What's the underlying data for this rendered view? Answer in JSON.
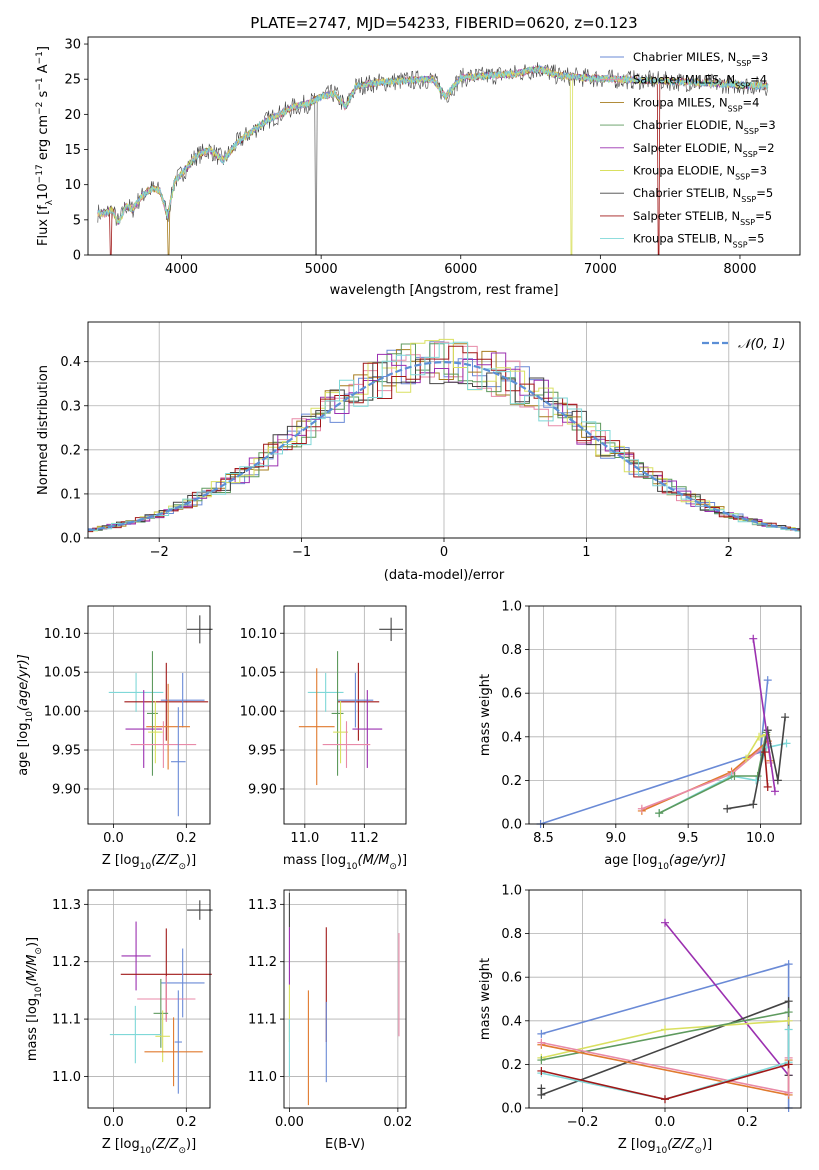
{
  "figure_title": "PLATE=2747, MJD=54233, FIBERID=0620, z=0.123",
  "legend_series": [
    {
      "name": "Chabrier MILES, N",
      "sub": "SSP",
      "val": "=3",
      "color": "#6a8ad6"
    },
    {
      "name": "Salpeter MILES, N",
      "sub": "SSP",
      "val": "=4",
      "color": "#e88aa8"
    },
    {
      "name": "Kroupa MILES, N",
      "sub": "SSP",
      "val": "=4",
      "color": "#a67c1e"
    },
    {
      "name": "Chabrier ELODIE, N",
      "sub": "SSP",
      "val": "=3",
      "color": "#5e9a5e"
    },
    {
      "name": "Salpeter ELODIE, N",
      "sub": "SSP",
      "val": "=2",
      "color": "#9b30b0"
    },
    {
      "name": "Kroupa ELODIE, N",
      "sub": "SSP",
      "val": "=3",
      "color": "#d9e060"
    },
    {
      "name": "Chabrier STELIB, N",
      "sub": "SSP",
      "val": "=5",
      "color": "#444444"
    },
    {
      "name": "Salpeter STELIB, N",
      "sub": "SSP",
      "val": "=5",
      "color": "#a01818"
    },
    {
      "name": "Kroupa STELIB, N",
      "sub": "SSP",
      "val": "=5",
      "color": "#7fd8d8"
    }
  ],
  "chart_data": [
    {
      "type": "line",
      "ylabel_main": "Flux [f",
      "ylabel_sub": "λ",
      "ylabel_rest": "10",
      "ylabel_exp1": "−17",
      "ylabel_unit": " erg cm",
      "ylabel_exp2": "−2",
      "ylabel_s": " s",
      "ylabel_exp3": "−1",
      "ylabel_end": " A",
      "ylabel_exp4": "−1",
      "ylabel_close": "]",
      "xlabel": "wavelength [Angstrom, rest frame]",
      "xlim": [
        3330,
        8430
      ],
      "ylim": [
        0,
        31
      ],
      "xticks": [
        4000,
        5000,
        6000,
        7000,
        8000
      ],
      "yticks": [
        0,
        5,
        10,
        15,
        20,
        25,
        30
      ],
      "spectrum": [
        [
          3400,
          6.0
        ],
        [
          3450,
          5.8
        ],
        [
          3500,
          6.5
        ],
        [
          3550,
          4.5
        ],
        [
          3600,
          7.0
        ],
        [
          3650,
          6.5
        ],
        [
          3700,
          8.0
        ],
        [
          3750,
          9.0
        ],
        [
          3800,
          9.5
        ],
        [
          3850,
          9.0
        ],
        [
          3900,
          5.5
        ],
        [
          3950,
          10.5
        ],
        [
          4000,
          11.5
        ],
        [
          4100,
          14.0
        ],
        [
          4200,
          15.0
        ],
        [
          4300,
          13.5
        ],
        [
          4400,
          16.0
        ],
        [
          4500,
          17.5
        ],
        [
          4600,
          19.0
        ],
        [
          4700,
          20.0
        ],
        [
          4800,
          21.0
        ],
        [
          4900,
          21.5
        ],
        [
          5000,
          22.5
        ],
        [
          5100,
          23.0
        ],
        [
          5175,
          21.0
        ],
        [
          5250,
          24.0
        ],
        [
          5400,
          24.5
        ],
        [
          5600,
          24.8
        ],
        [
          5800,
          25.0
        ],
        [
          5890,
          22.5
        ],
        [
          6000,
          25.2
        ],
        [
          6200,
          25.5
        ],
        [
          6400,
          25.8
        ],
        [
          6563,
          26.5
        ],
        [
          6700,
          25.5
        ],
        [
          6900,
          25.2
        ],
        [
          7100,
          25.0
        ],
        [
          7400,
          24.8
        ],
        [
          7700,
          24.5
        ],
        [
          8000,
          24.2
        ],
        [
          8200,
          24.0
        ]
      ]
    },
    {
      "type": "bar",
      "ylabel": "Normed distribution",
      "xlabel": "(data-model)/error",
      "xlim": [
        -2.5,
        2.5
      ],
      "ylim": [
        0,
        0.49
      ],
      "xticks": [
        -2,
        -1,
        0,
        1,
        2
      ],
      "yticks": [
        0.0,
        0.1,
        0.2,
        0.3,
        0.4
      ],
      "legend_label": "𝒩(0, 1)",
      "legend_color": "#5b8fd6"
    },
    {
      "type": "scatter",
      "panel": "age-vs-Z",
      "ylabel": "age  [log",
      "ylabel_sub": "10",
      "ylabel_rest": "(age/yr)]",
      "xlabel": "Z [log",
      "xlabel_sub": "10",
      "xlabel_rest": "(Z/Z",
      "xlabel_sun": "⊙",
      "xlabel_close": ")]",
      "xlim": [
        -0.07,
        0.265
      ],
      "ylim": [
        9.855,
        10.135
      ],
      "xticks": [
        0.0,
        0.2
      ],
      "yticks": [
        9.9,
        9.95,
        10.0,
        10.05,
        10.1
      ],
      "points": [
        {
          "x": 0.237,
          "y": 10.105,
          "ex": 0.035,
          "ey": 0.018,
          "c": "#444444"
        },
        {
          "x": 0.062,
          "y": 10.024,
          "ex": 0.075,
          "ey": 0.025,
          "c": "#7fd8d8"
        },
        {
          "x": 0.145,
          "y": 10.012,
          "ex": 0.115,
          "ey": 0.05,
          "c": "#a01818"
        },
        {
          "x": 0.19,
          "y": 10.014,
          "ex": 0.06,
          "ey": 0.035,
          "c": "#6a8ad6"
        },
        {
          "x": 0.15,
          "y": 9.98,
          "ex": 0.06,
          "ey": 0.055,
          "c": "#e07a2e"
        },
        {
          "x": 0.107,
          "y": 9.997,
          "ex": 0.015,
          "ey": 0.08,
          "c": "#5e9a5e"
        },
        {
          "x": 0.083,
          "y": 9.977,
          "ex": 0.05,
          "ey": 0.05,
          "c": "#9b30b0"
        },
        {
          "x": 0.115,
          "y": 9.973,
          "ex": 0.02,
          "ey": 0.04,
          "c": "#d9e060"
        },
        {
          "x": 0.137,
          "y": 9.957,
          "ex": 0.09,
          "ey": 0.03,
          "c": "#e88aa8"
        },
        {
          "x": 0.178,
          "y": 9.935,
          "ex": 0.02,
          "ey": 0.07,
          "c": "#6a8ad6"
        }
      ]
    },
    {
      "type": "scatter",
      "panel": "age-vs-mass",
      "xlabel": "mass [log",
      "xlabel_sub": "10",
      "xlabel_rest": "(M/M",
      "xlabel_sun": "⊙",
      "xlabel_close": ")]",
      "xlim": [
        10.93,
        11.34
      ],
      "ylim": [
        9.855,
        10.135
      ],
      "xticks": [
        11.0,
        11.2
      ],
      "yticks": [
        9.9,
        9.95,
        10.0,
        10.05,
        10.1
      ],
      "points": [
        {
          "x": 11.29,
          "y": 10.105,
          "ex": 0.04,
          "ey": 0.015,
          "c": "#444444"
        },
        {
          "x": 11.07,
          "y": 10.024,
          "ex": 0.06,
          "ey": 0.025,
          "c": "#7fd8d8"
        },
        {
          "x": 11.18,
          "y": 10.012,
          "ex": 0.07,
          "ey": 0.05,
          "c": "#a01818"
        },
        {
          "x": 11.17,
          "y": 10.014,
          "ex": 0.06,
          "ey": 0.035,
          "c": "#6a8ad6"
        },
        {
          "x": 11.04,
          "y": 9.98,
          "ex": 0.06,
          "ey": 0.075,
          "c": "#e07a2e"
        },
        {
          "x": 11.11,
          "y": 9.997,
          "ex": 0.02,
          "ey": 0.08,
          "c": "#5e9a5e"
        },
        {
          "x": 11.21,
          "y": 9.977,
          "ex": 0.05,
          "ey": 0.05,
          "c": "#9b30b0"
        },
        {
          "x": 11.12,
          "y": 9.973,
          "ex": 0.025,
          "ey": 0.04,
          "c": "#d9e060"
        },
        {
          "x": 11.14,
          "y": 9.957,
          "ex": 0.08,
          "ey": 0.03,
          "c": "#e88aa8"
        }
      ]
    },
    {
      "type": "line",
      "panel": "mass-weight-vs-age",
      "ylabel": "mass weight",
      "xlabel": "age  [log",
      "xlabel_sub": "10",
      "xlabel_rest": "(age/yr)]",
      "xlim": [
        8.4,
        10.28
      ],
      "ylim": [
        0,
        1
      ],
      "xticks": [
        8.5,
        9.0,
        9.5,
        10.0
      ],
      "yticks": [
        0.0,
        0.2,
        0.4,
        0.6,
        0.8,
        1.0
      ],
      "series": [
        {
          "c": "#6a8ad6",
          "pts": [
            [
              8.48,
              0.0
            ],
            [
              10.0,
              0.33
            ],
            [
              10.05,
              0.66
            ]
          ]
        },
        {
          "c": "#e07a2e",
          "pts": [
            [
              9.18,
              0.06
            ],
            [
              9.8,
              0.24
            ],
            [
              10.05,
              0.38
            ],
            [
              10.07,
              0.29
            ]
          ]
        },
        {
          "c": "#e88aa8",
          "pts": [
            [
              9.18,
              0.07
            ],
            [
              9.8,
              0.23
            ],
            [
              10.05,
              0.37
            ],
            [
              10.07,
              0.28
            ]
          ]
        },
        {
          "c": "#7fd8d8",
          "pts": [
            [
              9.3,
              0.05
            ],
            [
              9.8,
              0.22
            ],
            [
              9.97,
              0.2
            ],
            [
              10.04,
              0.35
            ],
            [
              10.18,
              0.37
            ]
          ]
        },
        {
          "c": "#5e9a5e",
          "pts": [
            [
              9.3,
              0.05
            ],
            [
              9.82,
              0.22
            ],
            [
              9.98,
              0.22
            ],
            [
              10.04,
              0.42
            ]
          ]
        },
        {
          "c": "#d9e060",
          "pts": [
            [
              9.9,
              0.3
            ],
            [
              9.99,
              0.4
            ],
            [
              10.04,
              0.41
            ]
          ]
        },
        {
          "c": "#444444",
          "pts": [
            [
              9.77,
              0.07
            ],
            [
              9.95,
              0.09
            ],
            [
              10.05,
              0.43
            ],
            [
              10.12,
              0.2
            ],
            [
              10.17,
              0.49
            ]
          ]
        },
        {
          "c": "#9b30b0",
          "pts": [
            [
              9.95,
              0.85
            ],
            [
              10.1,
              0.15
            ]
          ]
        },
        {
          "c": "#a01818",
          "pts": [
            [
              10.03,
              0.33
            ],
            [
              10.05,
              0.17
            ]
          ]
        }
      ]
    },
    {
      "type": "scatter",
      "panel": "mass-vs-Z",
      "ylabel": "mass [log",
      "ylabel_sub": "10",
      "ylabel_rest": "(M/M",
      "ylabel_sun": "⊙",
      "ylabel_close": ")]",
      "xlabel": "Z [log",
      "xlabel_sub": "10",
      "xlabel_rest": "(Z/Z",
      "xlabel_sun": "⊙",
      "xlabel_close": ")]",
      "xlim": [
        -0.07,
        0.265
      ],
      "ylim": [
        10.945,
        11.325
      ],
      "xticks": [
        0.0,
        0.2
      ],
      "yticks": [
        11.0,
        11.1,
        11.2,
        11.3
      ],
      "points": [
        {
          "x": 0.237,
          "y": 11.29,
          "ex": 0.035,
          "ey": 0.017,
          "c": "#444444"
        },
        {
          "x": 0.062,
          "y": 11.21,
          "ex": 0.04,
          "ey": 0.06,
          "c": "#9b30b0"
        },
        {
          "x": 0.145,
          "y": 11.178,
          "ex": 0.125,
          "ey": 0.08,
          "c": "#a01818"
        },
        {
          "x": 0.19,
          "y": 11.163,
          "ex": 0.06,
          "ey": 0.06,
          "c": "#6a8ad6"
        },
        {
          "x": 0.145,
          "y": 11.135,
          "ex": 0.08,
          "ey": 0.04,
          "c": "#e88aa8"
        },
        {
          "x": 0.13,
          "y": 11.11,
          "ex": 0.02,
          "ey": 0.06,
          "c": "#5e9a5e"
        },
        {
          "x": 0.135,
          "y": 11.07,
          "ex": 0.02,
          "ey": 0.045,
          "c": "#d9e060"
        },
        {
          "x": 0.06,
          "y": 11.073,
          "ex": 0.07,
          "ey": 0.05,
          "c": "#7fd8d8"
        },
        {
          "x": 0.165,
          "y": 11.043,
          "ex": 0.08,
          "ey": 0.06,
          "c": "#e07a2e"
        },
        {
          "x": 0.178,
          "y": 11.06,
          "ex": 0.01,
          "ey": 0.09,
          "c": "#6a8ad6"
        }
      ]
    },
    {
      "type": "scatter",
      "panel": "mass-vs-EBV",
      "xlabel": "E(B-V)",
      "xlim": [
        -0.001,
        0.0215
      ],
      "ylim": [
        10.945,
        11.325
      ],
      "xticks": [
        0.0,
        0.02
      ],
      "yticks": [
        11.0,
        11.1,
        11.2,
        11.3
      ],
      "points": [
        {
          "x": 0.0,
          "y": 11.29,
          "ex": 0,
          "ey": 0.03,
          "c": "#444444"
        },
        {
          "x": 0.0,
          "y": 11.21,
          "ex": 0,
          "ey": 0.05,
          "c": "#9b30b0"
        },
        {
          "x": 0.0,
          "y": 11.11,
          "ex": 0,
          "ey": 0.05,
          "c": "#d9e060"
        },
        {
          "x": 0.0,
          "y": 11.05,
          "ex": 0,
          "ey": 0.05,
          "c": "#7fd8d8"
        },
        {
          "x": 0.0035,
          "y": 11.05,
          "ex": 0,
          "ey": 0.1,
          "c": "#e07a2e"
        },
        {
          "x": 0.0068,
          "y": 11.16,
          "ex": 0,
          "ey": 0.1,
          "c": "#a01818"
        },
        {
          "x": 0.0068,
          "y": 11.06,
          "ex": 0,
          "ey": 0.07,
          "c": "#6a8ad6"
        },
        {
          "x": 0.0202,
          "y": 11.16,
          "ex": 0,
          "ey": 0.09,
          "c": "#e88aa8"
        }
      ]
    },
    {
      "type": "line",
      "panel": "mass-weight-vs-Z",
      "ylabel": "mass weight",
      "xlabel": "Z [log",
      "xlabel_sub": "10",
      "xlabel_rest": "(Z/Z",
      "xlabel_sun": "⊙",
      "xlabel_close": ")]",
      "xlim": [
        -0.33,
        0.33
      ],
      "ylim": [
        0,
        1
      ],
      "xticks": [
        -0.2,
        0.0,
        0.2
      ],
      "yticks": [
        0.0,
        0.2,
        0.4,
        0.6,
        0.8,
        1.0
      ],
      "series": [
        {
          "c": "#6a8ad6",
          "pts": [
            [
              -0.3,
              0.34
            ],
            [
              0.3,
              0.66
            ],
            [
              0.3,
              0.0
            ]
          ]
        },
        {
          "c": "#9b30b0",
          "pts": [
            [
              0.0,
              0.85
            ],
            [
              0.3,
              0.15
            ]
          ]
        },
        {
          "c": "#444444",
          "pts": [
            [
              -0.3,
              0.09
            ],
            [
              -0.3,
              0.06
            ],
            [
              0.3,
              0.49
            ],
            [
              0.3,
              0.15
            ]
          ]
        },
        {
          "c": "#d9e060",
          "pts": [
            [
              -0.3,
              0.23
            ],
            [
              0.0,
              0.36
            ],
            [
              0.3,
              0.4
            ]
          ]
        },
        {
          "c": "#5e9a5e",
          "pts": [
            [
              -0.3,
              0.22
            ],
            [
              0.3,
              0.44
            ]
          ]
        },
        {
          "c": "#e07a2e",
          "pts": [
            [
              -0.3,
              0.29
            ],
            [
              0.3,
              0.06
            ],
            [
              0.3,
              0.22
            ]
          ]
        },
        {
          "c": "#e88aa8",
          "pts": [
            [
              -0.3,
              0.3
            ],
            [
              0.3,
              0.07
            ],
            [
              0.3,
              0.23
            ]
          ]
        },
        {
          "c": "#7fd8d8",
          "pts": [
            [
              -0.3,
              0.16
            ],
            [
              0.0,
              0.04
            ],
            [
              0.3,
              0.21
            ],
            [
              0.3,
              0.36
            ]
          ]
        },
        {
          "c": "#a01818",
          "pts": [
            [
              -0.3,
              0.17
            ],
            [
              0.0,
              0.04
            ],
            [
              0.3,
              0.2
            ]
          ]
        }
      ]
    }
  ]
}
